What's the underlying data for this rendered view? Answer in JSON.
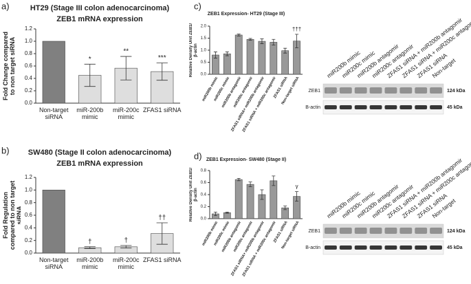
{
  "chart_data": [
    {
      "type": "bar",
      "panel": "a)",
      "title": "HT29 (Stage III colon adenocarcinoma)",
      "subtitle": "ZEB1 mRNA expression",
      "ylabel": "Fold Change compared to non target siRNA",
      "categories": [
        "Non-target siRNA",
        "miR-200b mimic",
        "miR-200c mimic",
        "ZFAS1 siRNA"
      ],
      "values": [
        1.0,
        0.45,
        0.565,
        0.51
      ],
      "errors": [
        0,
        0.18,
        0.19,
        0.14
      ],
      "annotations": [
        null,
        "*",
        "**",
        "***"
      ],
      "colors": [
        "#808080",
        "#dedede",
        "#dedede",
        "#dedede"
      ],
      "ylim": [
        0,
        1.2
      ],
      "yticks": [
        {
          "value": 0,
          "label": "0.0"
        },
        0.2,
        0.4,
        0.6,
        0.8,
        {
          "value": 1,
          "label": "1.0"
        },
        1.2
      ]
    },
    {
      "type": "bar",
      "panel": "b)",
      "title": "SW480 (Stage II colon adenocarcinoma)",
      "subtitle": "ZEB1 mRNA expression",
      "ylabel": "Fold Regulation compared to non target siRNA",
      "categories": [
        "Non-target siRNA",
        "miR-200b mimic",
        "miR-200c mimic",
        "ZFAS1 siRNA"
      ],
      "values": [
        1.0,
        0.085,
        0.1,
        0.31
      ],
      "errors": [
        0,
        0.015,
        0.02,
        0.17
      ],
      "annotations": [
        null,
        "†",
        "†",
        "††"
      ],
      "colors": [
        "#808080",
        "#dedede",
        "#dedede",
        "#dedede"
      ],
      "ylim": [
        0,
        1.2
      ],
      "yticks": [
        {
          "value": 0,
          "label": "0.0"
        },
        0.2,
        0.4,
        0.6,
        0.8,
        {
          "value": 1,
          "label": "1.0"
        },
        1.2
      ]
    },
    {
      "type": "bar",
      "panel": "c)",
      "title": "ZEB1 Expression- HT29 (Stage III)",
      "ylabel": "Relative Density Unit ZEB1/β-actin",
      "categories": [
        "miR200b mimic",
        "miR200c mimic",
        "miR200b antagomir",
        "miR200c antagomir",
        "ZFAS1 siRNA+ miR200b antagomir",
        "ZFAS1 siRNA + miR200c antagomir",
        "ZFAS1 siRNA",
        "Non-target siRNA"
      ],
      "values": [
        0.8,
        0.85,
        1.63,
        1.45,
        1.37,
        1.33,
        0.98,
        1.38
      ],
      "errors": [
        0.13,
        0.08,
        0.04,
        0.04,
        0.1,
        0.12,
        0.1,
        0.28
      ],
      "annotations": [
        null,
        null,
        null,
        null,
        null,
        null,
        null,
        "†††"
      ],
      "colors": [
        "#999999",
        "#999999",
        "#999999",
        "#999999",
        "#999999",
        "#999999",
        "#999999",
        "#999999"
      ],
      "ylim": [
        0,
        2
      ],
      "yticks": [
        {
          "value": 0,
          "label": "0.0"
        },
        0.5,
        {
          "value": 1,
          "label": "1.0"
        },
        1.5,
        {
          "value": 2,
          "label": "2.0"
        }
      ],
      "blot": {
        "lanes": [
          "miR200b mimic",
          "miR200c mimic",
          "miR200b antagomir",
          "miR200c antagomir",
          "ZFAS1 siRNA + miR200b antagomir",
          "ZFAS1 siRNA + miR200c antagomir",
          "ZFAS1 siRNA",
          "Non-target"
        ],
        "rows": [
          {
            "name": "ZEB1",
            "size": "124 kDa"
          },
          {
            "name": "B-actin",
            "size": "45 kDa"
          }
        ]
      }
    },
    {
      "type": "bar",
      "panel": "d)",
      "title": "ZEB1 Expression- SW480 (Stage II)",
      "ylabel": "Relative Density Unit ZEB1/β-actin",
      "categories": [
        "miR200b mimic",
        "miR200c mimic",
        "miR200b antagomir",
        "miR200c antagomir",
        "ZFAS1 siRNA+ miR200b antagomir",
        "ZFAS1 siRNA + miR200c antagomir",
        "ZFAS1 siRNA",
        "Non-target siRNA"
      ],
      "values": [
        0.08,
        0.1,
        0.65,
        0.57,
        0.4,
        0.63,
        0.18,
        0.37
      ],
      "errors": [
        0.03,
        0.01,
        0.02,
        0.04,
        0.08,
        0.08,
        0.03,
        0.08
      ],
      "annotations": [
        null,
        null,
        null,
        null,
        null,
        null,
        null,
        "γ"
      ],
      "colors": [
        "#999999",
        "#999999",
        "#999999",
        "#999999",
        "#999999",
        "#999999",
        "#999999",
        "#999999"
      ],
      "ylim": [
        0,
        0.8
      ],
      "yticks": [
        {
          "value": 0,
          "label": "0.0"
        },
        0.2,
        0.4,
        0.6,
        0.8
      ],
      "blot": {
        "lanes": [
          "miR200b mimic",
          "miR200c mimic",
          "miR200b antagomir",
          "miR200c antagomir",
          "ZFAS1 siRNA + miR200b antagomir",
          "ZFAS1 siRNA + miR200c antagomir",
          "ZFAS1 siRNA",
          "Non-target"
        ],
        "rows": [
          {
            "name": "ZEB1",
            "size": "124 kDa"
          },
          {
            "name": "B-actin",
            "size": "45 kDa"
          }
        ]
      }
    }
  ]
}
